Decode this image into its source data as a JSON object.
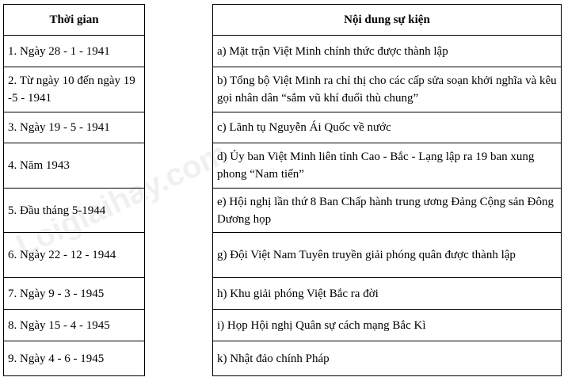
{
  "headers": {
    "time": "Thời gian",
    "event": "Nội dung sự kiện"
  },
  "times": [
    "1. Ngày 28 - 1 - 1941",
    "2. Từ ngày 10 đến ngày 19 -5 - 1941",
    "3. Ngày 19 - 5 - 1941",
    "4. Năm 1943",
    "5. Đầu tháng 5-1944",
    "6. Ngày 22 - 12 - 1944",
    "7. Ngày 9 - 3 - 1945",
    "8. Ngày 15 - 4 - 1945",
    "9. Ngày 4 - 6 - 1945"
  ],
  "events": [
    "a) Mặt trận Việt Minh chính thức được thành lập",
    "b) Tổng bộ Việt Minh ra chỉ thị cho các cấp sửa soạn khởi nghĩa và kêu gọi nhân dân “sắm vũ khí đuổi thù chung”",
    "c) Lãnh tụ Nguyễn Ái Quốc về nước",
    "d) Ủy ban Việt Minh liên tỉnh Cao - Bắc - Lạng lập ra 19 ban xung phong “Nam tiến”",
    "e) Hội nghị lần thứ 8 Ban Chấp hành trung ương Đảng Cộng sản Đông Dương họp",
    "g) Đội Việt Nam Tuyên truyền giải phóng quân được thành lập",
    "h) Khu giải phóng Việt Bắc ra đời",
    "i) Họp Hội nghị Quân sự cách mạng Bắc Kì",
    "k) Nhật đảo chính Pháp"
  ],
  "watermark": "Loigiaihay.com"
}
